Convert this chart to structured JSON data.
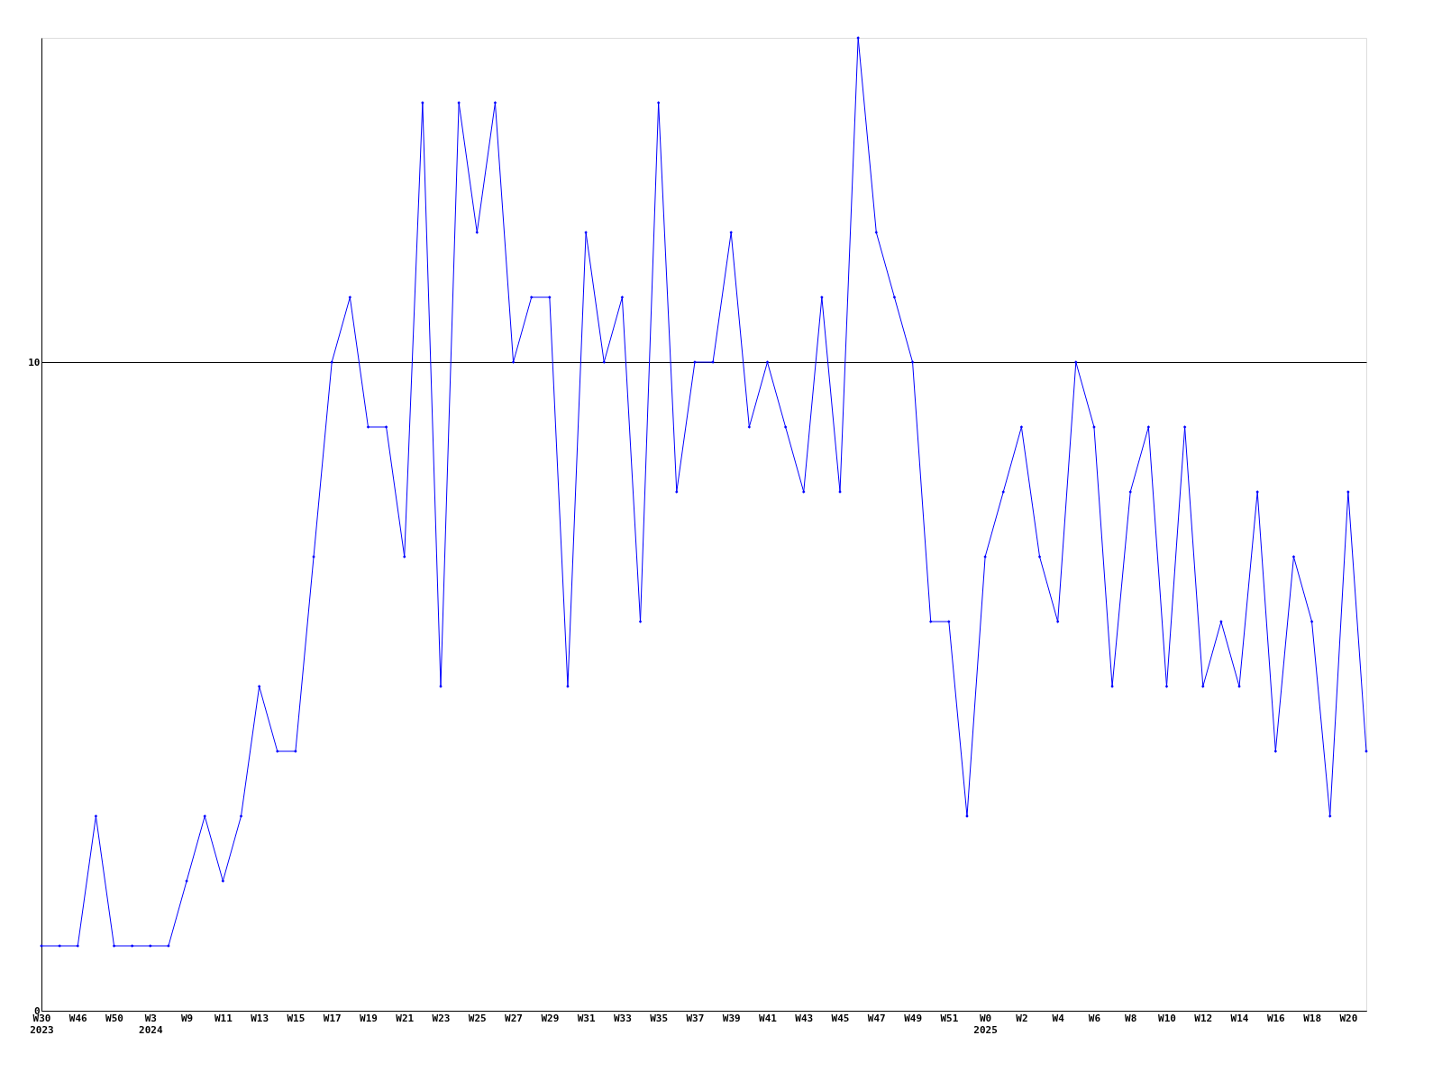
{
  "chart_data": {
    "type": "line",
    "categories": [
      "W30\n2023",
      null,
      "W46",
      null,
      "W50",
      null,
      "W3\n2024",
      null,
      "W9",
      null,
      "W11",
      null,
      "W13",
      null,
      "W15",
      null,
      "W17",
      null,
      "W19",
      null,
      "W21",
      null,
      "W23",
      null,
      "W25",
      null,
      "W27",
      null,
      "W29",
      null,
      "W31",
      null,
      "W33",
      null,
      "W35",
      null,
      "W37",
      null,
      "W39",
      null,
      "W41",
      null,
      "W43",
      null,
      "W45",
      null,
      "W47",
      null,
      "W49",
      null,
      "W51",
      null,
      "W0\n2025",
      null,
      "W2",
      null,
      "W4",
      null,
      "W6",
      null,
      "W8",
      null,
      "W10",
      null,
      "W12",
      null,
      "W14",
      null,
      "W16",
      null,
      "W18",
      null,
      "W20",
      null
    ],
    "series": [
      {
        "color": "#0000ff",
        "values": [
          1,
          1,
          1,
          3,
          1,
          1,
          1,
          1,
          2,
          3,
          2,
          3,
          5,
          4,
          4,
          7,
          10,
          11,
          9,
          9,
          7,
          14,
          5,
          14,
          12,
          14,
          10,
          11,
          11,
          5,
          12,
          10,
          11,
          6,
          14,
          8,
          10,
          10,
          12,
          9,
          10,
          9,
          8,
          11,
          8,
          15,
          12,
          11,
          10,
          6,
          6,
          3,
          7,
          8,
          9,
          7,
          6,
          10,
          9,
          5,
          8,
          9,
          5,
          9,
          5,
          6,
          5,
          8,
          4,
          7,
          6,
          3,
          8,
          4
        ]
      }
    ],
    "ylim": [
      0,
      15
    ],
    "yticks": [
      0,
      10
    ],
    "grid": "y",
    "marker": "diamond",
    "line_style": "solid"
  }
}
